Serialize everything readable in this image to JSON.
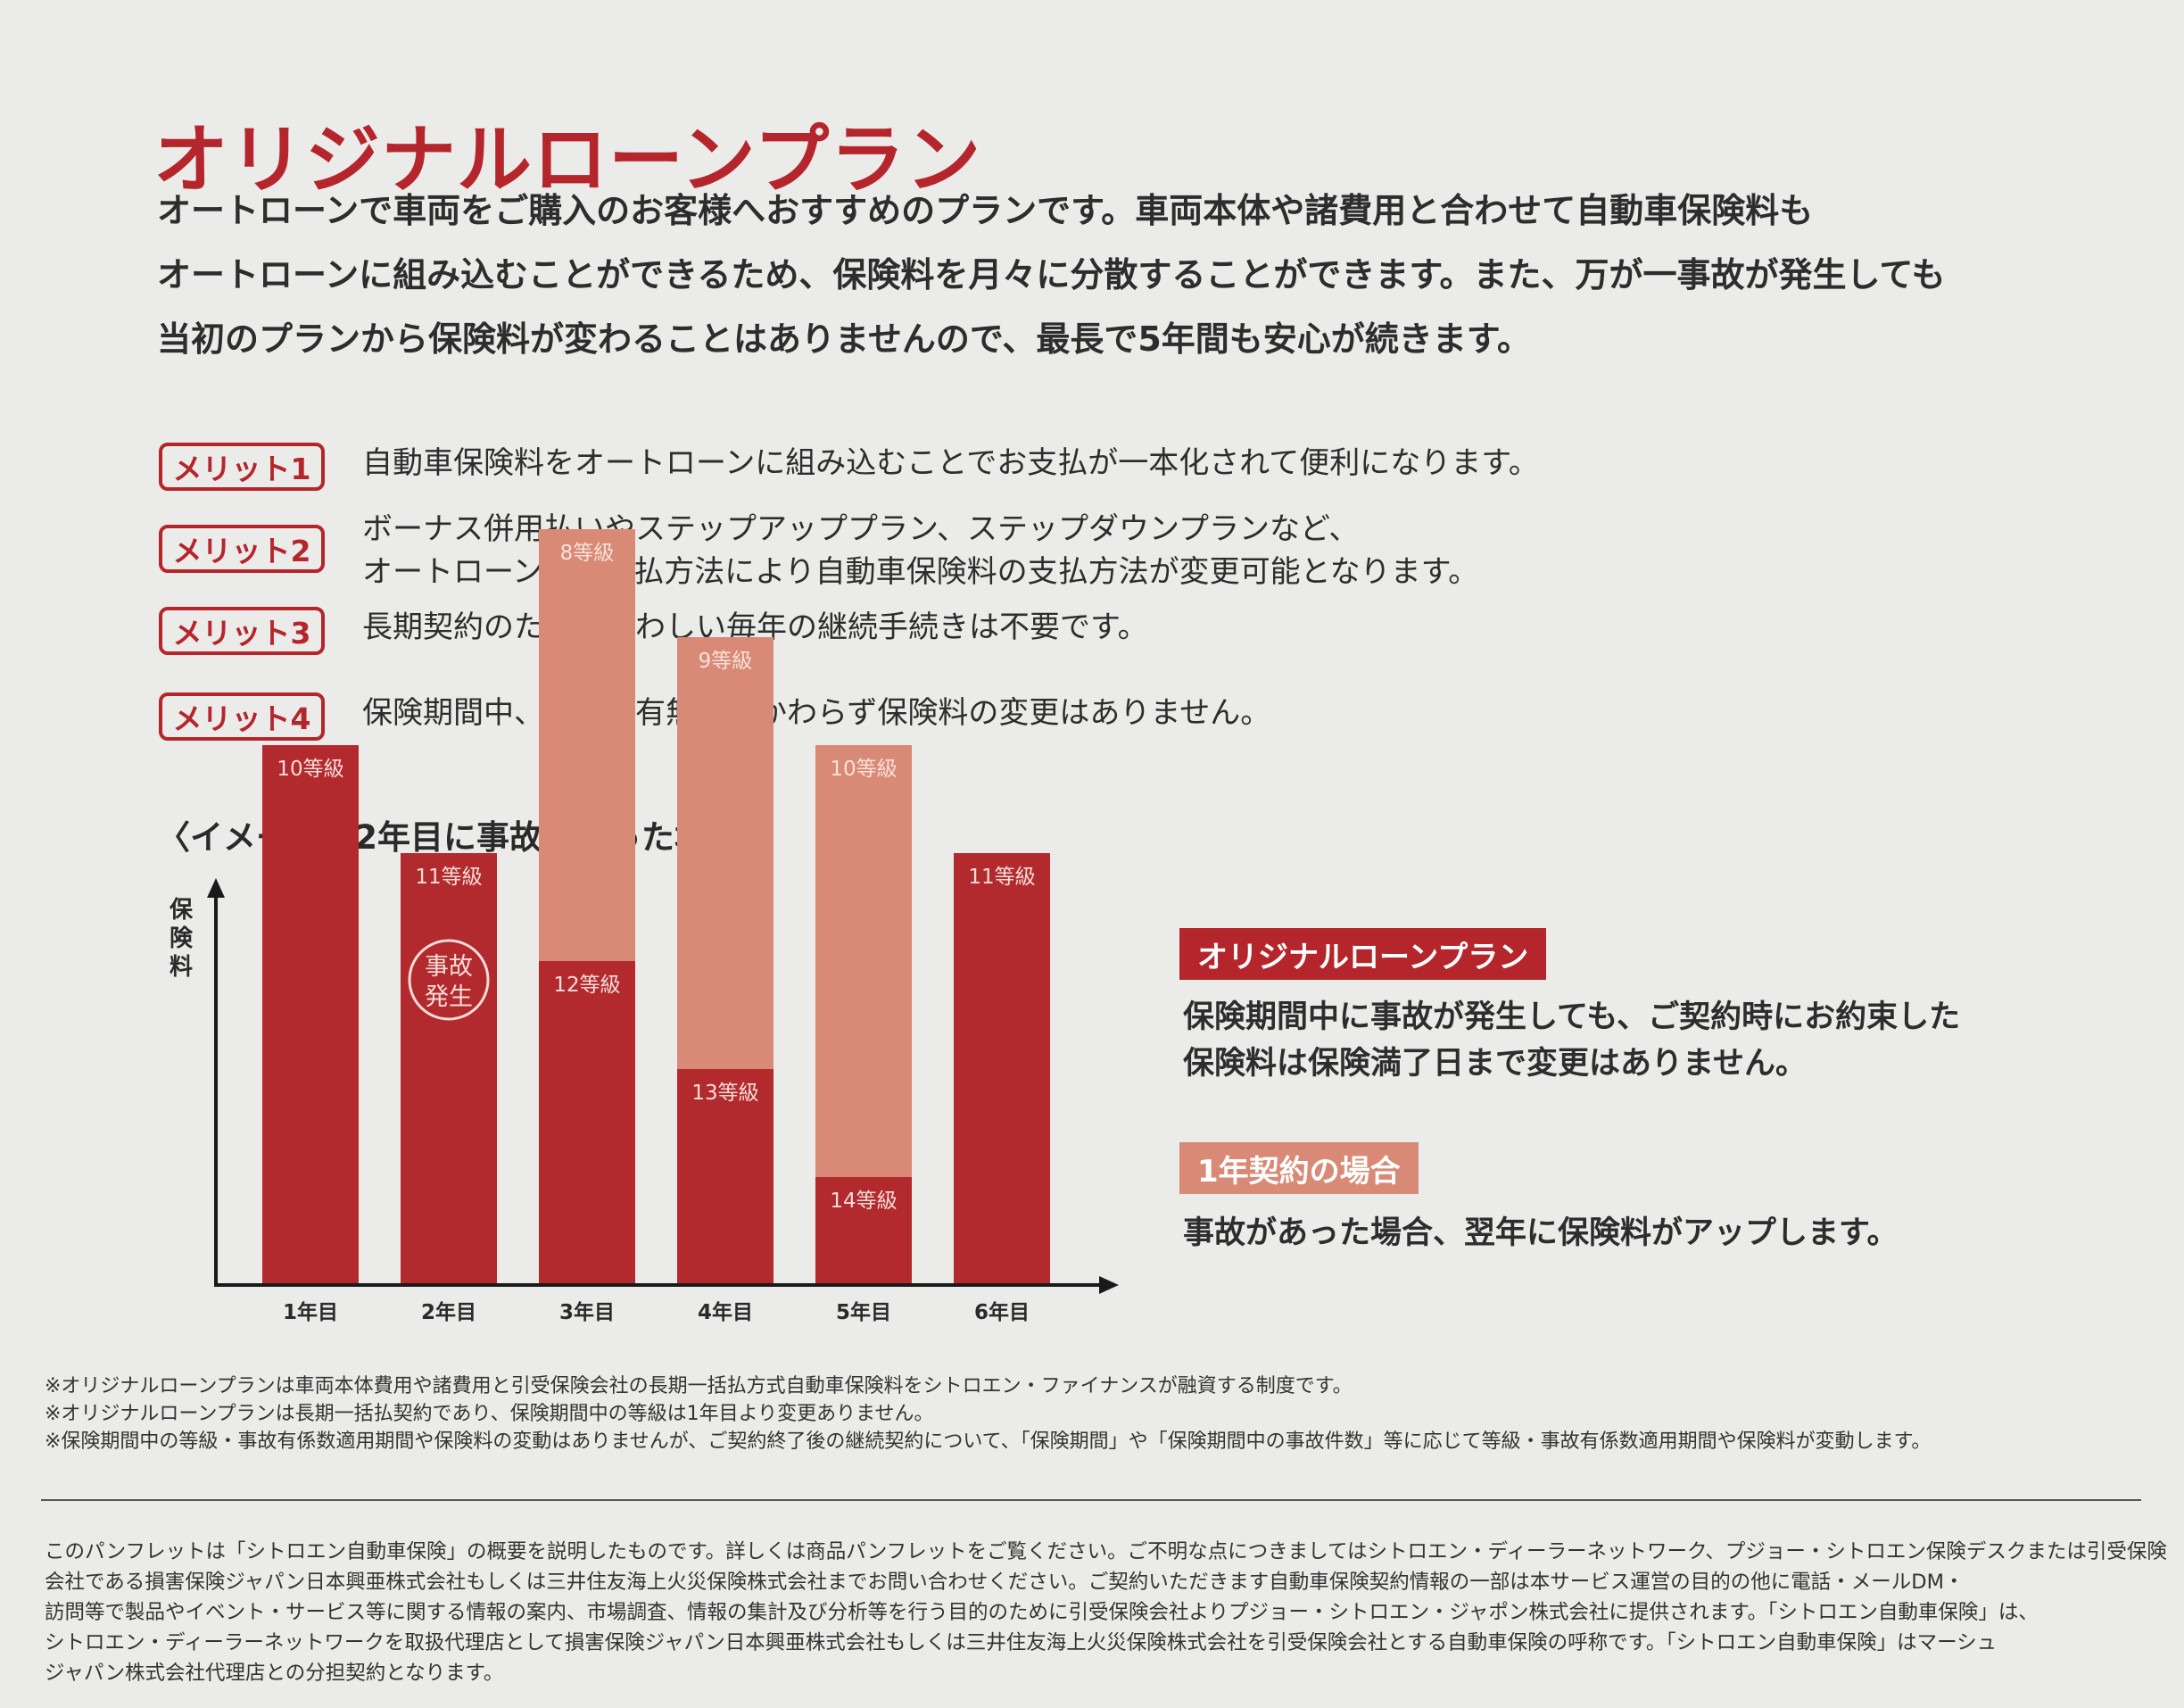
{
  "title": "オリジナルローンプラン",
  "intro": [
    "オートローンで車両をご購入のお客様へおすすめのプランです。車両本体や諸費用と合わせて自動車保険料も",
    "オートローンに組み込むことができるため、保険料を月々に分散することができます。また、万が一事故が発生しても",
    "当初のプランから保険料が変わることはありませんので、最長で5年間も安心が続きます。"
  ],
  "merits": [
    {
      "badge": "メリット1",
      "lines": [
        "自動車保険料をオートローンに組み込むことでお支払が一本化されて便利になります。"
      ]
    },
    {
      "badge": "メリット2",
      "lines": [
        "ボーナス併用払いやステップアッププラン、ステップダウンプランなど、",
        "オートローンのお支払方法により自動車保険料の支払方法が変更可能となります。"
      ]
    },
    {
      "badge": "メリット3",
      "lines": [
        "長期契約のため、煩わしい毎年の継続手続きは不要です。"
      ]
    },
    {
      "badge": "メリット4",
      "lines": [
        "保険期間中、事故の有無にかかわらず保険料の変更はありません。"
      ]
    }
  ],
  "chart_section_title": "〈イメージ〉2年目に事故があった場合",
  "chart_data": {
    "type": "bar",
    "ylabel": "保険料",
    "categories": [
      "1年目",
      "2年目",
      "3年目",
      "4年目",
      "5年目",
      "6年目"
    ],
    "series": [
      {
        "name": "オリジナルローンプラン",
        "values": [
          10,
          8,
          6,
          4,
          2,
          8
        ],
        "labels": [
          "10等級",
          "11等級",
          "12等級",
          "13等級",
          "14等級",
          "11等級"
        ]
      },
      {
        "name": "1年契約の場合",
        "values": [
          0,
          0,
          8,
          8,
          8,
          0
        ],
        "labels": [
          "",
          "",
          "8等級",
          "9等級",
          "10等級",
          ""
        ]
      }
    ],
    "annotation": "事故発生",
    "annotation_category": "2年目",
    "ylim": [
      0,
      15
    ],
    "colors": {
      "loan": "#b32a2e",
      "annual": "#d98a77",
      "annual_label": "#f6e0d8"
    }
  },
  "plan_badge": "オリジナルローンプラン",
  "plan_text": [
    "保険期間中に事故が発生しても、ご契約時にお約束した",
    "保険料は保険満了日まで変更はありません。"
  ],
  "oneyear_badge": "1年契約の場合",
  "oneyear_text": "事故があった場合、翌年に保険料がアップします。",
  "notes": [
    "※オリジナルローンプランは車両本体費用や諸費用と引受保険会社の長期一括払方式自動車保険料をシトロエン・ファイナンスが融資する制度です。",
    "※オリジナルローンプランは長期一括払契約であり、保険期間中の等級は1年目より変更ありません。",
    "※保険期間中の等級・事故有係数適用期間や保険料の変動はありませんが、ご契約終了後の継続契約について、「保険期間」や「保険期間中の事故件数」等に応じて等級・事故有係数適用期間や保険料が変動します。"
  ],
  "footer": [
    "このパンフレットは「シトロエン自動車保険」の概要を説明したものです。詳しくは商品パンフレットをご覧ください。ご不明な点につきましてはシトロエン・ディーラーネットワーク、プジョー・シトロエン保険デスクまたは引受保険",
    "会社である損害保険ジャパン日本興亜株式会社もしくは三井住友海上火災保険株式会社までお問い合わせください。ご契約いただきます自動車保険契約情報の一部は本サービス運営の目的の他に電話・メールDM・",
    "訪問等で製品やイベント・サービス等に関する情報の案内、市場調査、情報の集計及び分析等を行う目的のために引受保険会社よりプジョー・シトロエン・ジャポン株式会社に提供されます。「シトロエン自動車保険」は、",
    "シトロエン・ディーラーネットワークを取扱代理店として損害保険ジャパン日本興亜株式会社もしくは三井住友海上火災保険株式会社を引受保険会社とする自動車保険の呼称です。「シトロエン自動車保険」はマーシュ",
    "ジャパン株式会社代理店との分担契約となります。"
  ]
}
